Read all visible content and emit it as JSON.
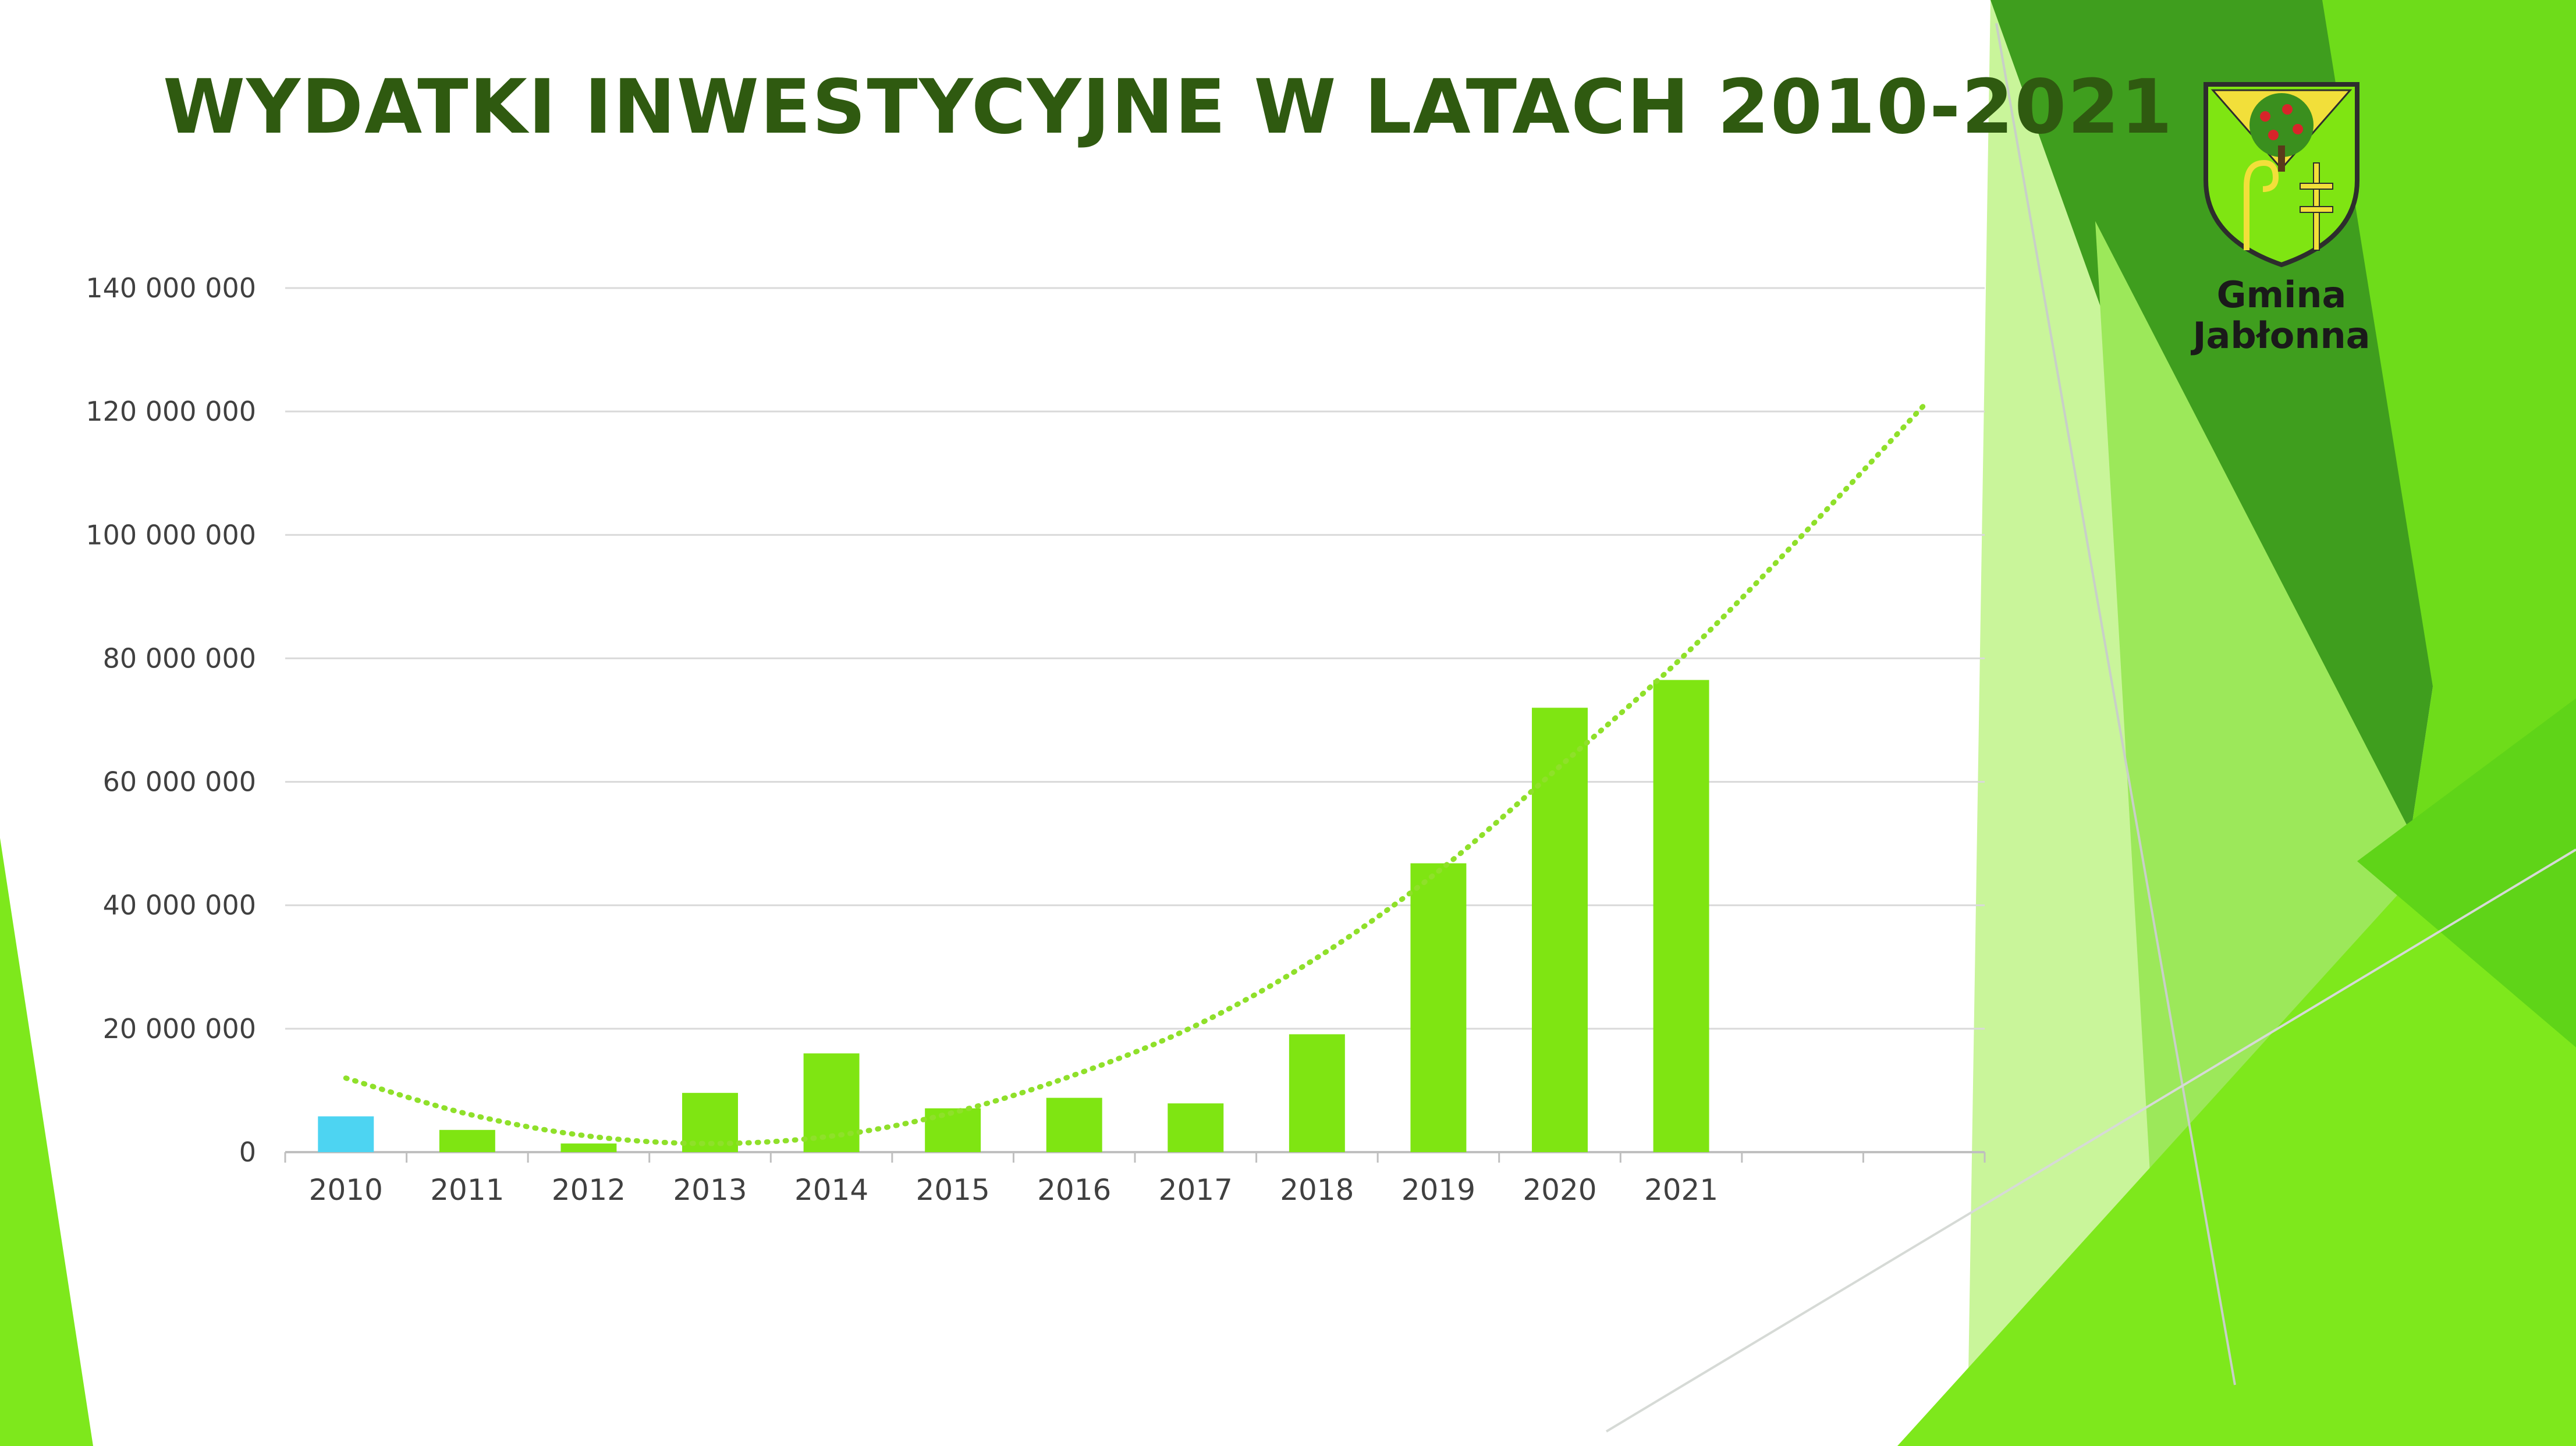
{
  "slide": {
    "title": "WYDATKI INWESTYCYJNE W LATACH 2010-2021"
  },
  "logo": {
    "line1": "Gmina",
    "line2": "Jabłonna",
    "icon": "coat-of-arms-icon"
  },
  "colors": {
    "title": "#2f5a10",
    "bar": "#7fe512",
    "bar_highlight": "#4dd4f2",
    "trendline": "#8fe02a",
    "decor_dark": "#3f9e1e",
    "decor_mid": "#6edc1a",
    "decor_light": "#c9f59a"
  },
  "chart_data": {
    "type": "bar",
    "title": "",
    "xlabel": "",
    "ylabel": "",
    "categories": [
      "2010",
      "2011",
      "2012",
      "2013",
      "2014",
      "2015",
      "2016",
      "2017",
      "2018",
      "2019",
      "2020",
      "2021"
    ],
    "series": [
      {
        "values": [
          5800000,
          3600000,
          1400000,
          9600000,
          16000000,
          7100000,
          8800000,
          7900000,
          19100000,
          46800000,
          72000000,
          76500000
        ]
      }
    ],
    "highlight_index": 0,
    "y_ticks": [
      "0",
      "20 000 000",
      "40 000 000",
      "60 000 000",
      "80 000 000",
      "100 000 000",
      "120 000 000",
      "140 000 000"
    ],
    "ylim": [
      0,
      140000000
    ],
    "extra_empty_slots": 2,
    "trendline": {
      "type": "polynomial",
      "style": "dotted",
      "points": [
        [
          0,
          12000000
        ],
        [
          1,
          6200000
        ],
        [
          2,
          2600000
        ],
        [
          3,
          1400000
        ],
        [
          4,
          2600000
        ],
        [
          5,
          6400000
        ],
        [
          6,
          12500000
        ],
        [
          7,
          20500000
        ],
        [
          8,
          31500000
        ],
        [
          9,
          45500000
        ],
        [
          10,
          62500000
        ],
        [
          11,
          80000000
        ],
        [
          12,
          100000000
        ],
        [
          13,
          121000000
        ]
      ]
    },
    "grid": true,
    "legend": "none"
  }
}
